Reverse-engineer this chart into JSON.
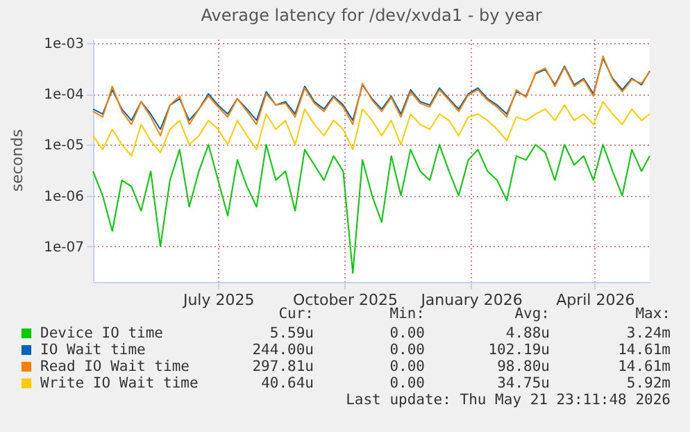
{
  "chart_data": {
    "type": "line",
    "title": "Average latency for /dev/xvda1 - by year",
    "ylabel": "seconds",
    "log": "y",
    "grid": true,
    "legend": "bottom",
    "marker": "none",
    "line_style": "solid",
    "xlim": [
      "2025-04-01",
      "2026-05-11"
    ],
    "xticks": [
      {
        "value": "2025-07-01",
        "label": "July 2025"
      },
      {
        "value": "2025-10-01",
        "label": "October 2025"
      },
      {
        "value": "2026-01-01",
        "label": "January 2026"
      },
      {
        "value": "2026-04-01",
        "label": "April 2026"
      }
    ],
    "ylim": [
      2e-08,
      0.0012
    ],
    "yticks": [
      {
        "value": 1e-07,
        "label": "1e-07"
      },
      {
        "value": 1e-06,
        "label": "1e-06"
      },
      {
        "value": 1e-05,
        "label": "1e-05"
      },
      {
        "value": 0.0001,
        "label": "1e-04"
      },
      {
        "value": 0.001,
        "label": "1e-03"
      }
    ],
    "x": [
      "2025-04-01",
      "2025-04-08",
      "2025-04-15",
      "2025-04-22",
      "2025-04-29",
      "2025-05-06",
      "2025-05-13",
      "2025-05-20",
      "2025-05-27",
      "2025-06-03",
      "2025-06-10",
      "2025-06-17",
      "2025-06-24",
      "2025-07-01",
      "2025-07-08",
      "2025-07-15",
      "2025-07-22",
      "2025-07-29",
      "2025-08-05",
      "2025-08-12",
      "2025-08-19",
      "2025-08-26",
      "2025-09-02",
      "2025-09-09",
      "2025-09-16",
      "2025-09-23",
      "2025-09-30",
      "2025-10-07",
      "2025-10-14",
      "2025-10-21",
      "2025-10-28",
      "2025-11-04",
      "2025-11-11",
      "2025-11-18",
      "2025-11-25",
      "2025-12-02",
      "2025-12-09",
      "2025-12-16",
      "2025-12-23",
      "2025-12-30",
      "2026-01-06",
      "2026-01-13",
      "2026-01-20",
      "2026-01-27",
      "2026-02-03",
      "2026-02-10",
      "2026-02-17",
      "2026-02-24",
      "2026-03-03",
      "2026-03-10",
      "2026-03-17",
      "2026-03-24",
      "2026-03-31",
      "2026-04-07",
      "2026-04-14",
      "2026-04-21",
      "2026-04-28",
      "2026-05-05",
      "2026-05-11"
    ],
    "series": [
      {
        "name": "Device IO time",
        "color": "#00cc00",
        "values": [
          3e-06,
          1e-06,
          2e-07,
          2e-06,
          1.5e-06,
          5e-07,
          3e-06,
          1e-07,
          2e-06,
          8e-06,
          6e-07,
          3e-06,
          1e-05,
          2e-06,
          4e-07,
          5e-06,
          1.5e-06,
          6e-07,
          1e-05,
          2e-06,
          3e-06,
          5e-07,
          8e-06,
          4e-06,
          2e-06,
          6e-06,
          3e-06,
          3e-08,
          5e-06,
          1e-06,
          3e-07,
          6e-06,
          1e-06,
          8e-06,
          3e-06,
          2e-06,
          1e-05,
          3e-06,
          1e-06,
          5e-06,
          8e-06,
          3e-06,
          2e-06,
          8e-07,
          6e-06,
          5e-06,
          1e-05,
          7e-06,
          2e-06,
          1e-05,
          4e-06,
          6e-06,
          2e-06,
          1e-05,
          3e-06,
          1e-06,
          8e-06,
          3e-06,
          6e-06
        ]
      },
      {
        "name": "IO Wait time",
        "color": "#0066b3",
        "values": [
          5e-05,
          4e-05,
          0.00012,
          5e-05,
          3e-05,
          7e-05,
          4e-05,
          2e-05,
          6e-05,
          8e-05,
          3e-05,
          5e-05,
          0.0001,
          6e-05,
          4e-05,
          8e-05,
          5e-05,
          3e-05,
          0.00011,
          6e-05,
          7e-05,
          4e-05,
          0.00014,
          7e-05,
          5e-05,
          9e-05,
          6e-05,
          3e-05,
          0.00015,
          8e-05,
          5e-05,
          9e-05,
          4e-05,
          0.00012,
          7e-05,
          6e-05,
          0.00013,
          8e-05,
          5e-05,
          0.0001,
          0.00013,
          8e-05,
          6e-05,
          4e-05,
          0.00011,
          9e-05,
          0.00025,
          0.0003,
          0.00015,
          0.00035,
          0.00015,
          0.0002,
          0.0001,
          0.0005,
          0.0002,
          0.00012,
          0.0002,
          0.00015,
          0.00028
        ]
      },
      {
        "name": "Read IO Wait time",
        "color": "#ff8000",
        "values": [
          4.5e-05,
          3.5e-05,
          0.00014,
          4.5e-05,
          2.5e-05,
          7e-05,
          3.5e-05,
          1.5e-05,
          6e-05,
          9e-05,
          2.5e-05,
          5e-05,
          9e-05,
          5.5e-05,
          3.5e-05,
          8e-05,
          4.5e-05,
          2.5e-05,
          0.0001,
          6e-05,
          6.5e-05,
          3.5e-05,
          0.00013,
          6.5e-05,
          4.5e-05,
          8.5e-05,
          5.5e-05,
          2.5e-05,
          0.00016,
          7.5e-05,
          4.5e-05,
          8.5e-05,
          3.5e-05,
          0.00011,
          6.5e-05,
          5.5e-05,
          0.00012,
          7.5e-05,
          4.5e-05,
          9.5e-05,
          0.00012,
          7.5e-05,
          5.5e-05,
          3.5e-05,
          0.00012,
          8.5e-05,
          0.00026,
          0.00032,
          0.00014,
          0.00033,
          0.00014,
          0.00019,
          9e-05,
          0.00055,
          0.00019,
          0.00011,
          0.00019,
          0.00016,
          0.00027
        ]
      },
      {
        "name": "Write IO Wait time",
        "color": "#ffcc00",
        "values": [
          1.5e-05,
          8e-06,
          2e-05,
          1e-05,
          6e-06,
          2.5e-05,
          1.2e-05,
          7e-06,
          2e-05,
          3e-05,
          1e-05,
          1.5e-05,
          3e-05,
          2e-05,
          1e-05,
          3e-05,
          1.5e-05,
          8e-06,
          4e-05,
          2e-05,
          3e-05,
          1e-05,
          5e-05,
          2.5e-05,
          1.5e-05,
          3e-05,
          2e-05,
          8e-06,
          5e-05,
          3e-05,
          1.5e-05,
          3e-05,
          1e-05,
          4e-05,
          2.5e-05,
          2e-05,
          4e-05,
          3e-05,
          1.5e-05,
          3.5e-05,
          4e-05,
          3e-05,
          2e-05,
          1.2e-05,
          3.5e-05,
          3e-05,
          4e-05,
          5e-05,
          3e-05,
          6e-05,
          3e-05,
          4e-05,
          2.5e-05,
          7e-05,
          4e-05,
          2.5e-05,
          5e-05,
          3e-05,
          4e-05
        ]
      }
    ],
    "annotations": [
      "Cur:",
      "Min:",
      "Avg:",
      "Max:",
      "5.59u",
      "0.00",
      "4.88u",
      "3.24m",
      "244.00u",
      "0.00",
      "102.19u",
      "14.61m",
      "297.81u",
      "0.00",
      "98.80u",
      "14.61m",
      "40.64u",
      "0.00",
      "34.75u",
      "5.92m",
      "Last update: Thu May 21 23:11:48 2026"
    ]
  }
}
